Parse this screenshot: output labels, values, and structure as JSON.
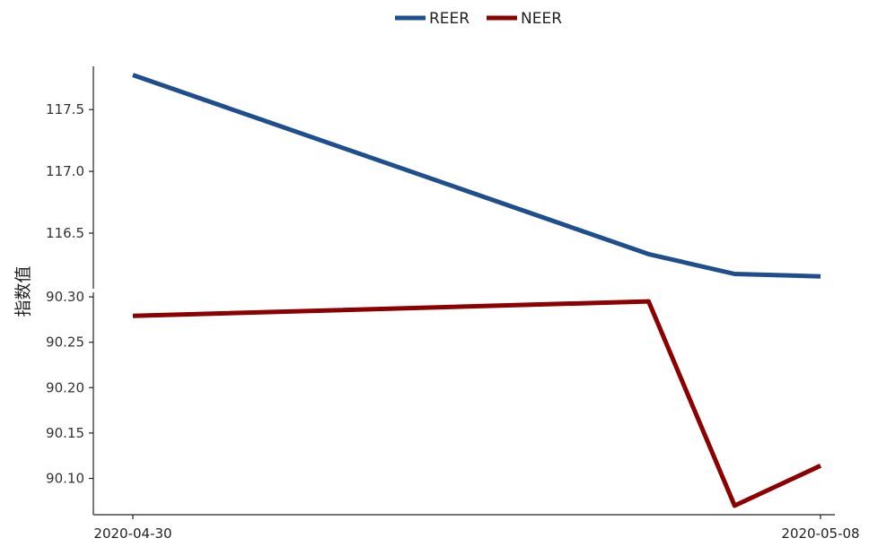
{
  "chart_data": {
    "type": "line",
    "title": "",
    "ylabel": "指数值",
    "xlabel": "",
    "x": [
      "2020-04-30",
      "2020-05-06",
      "2020-05-07",
      "2020-05-08"
    ],
    "xticks": [
      "2020-04-30",
      "2020-05-08"
    ],
    "legend": {
      "position": "top",
      "entries": [
        "REER",
        "NEER"
      ]
    },
    "panels": [
      {
        "series": "REER",
        "color": "#1f4e8c",
        "values": [
          117.78,
          116.33,
          116.17,
          116.15
        ],
        "ylim": [
          116.05,
          117.85
        ],
        "yticks": [
          "117.5",
          "117.0",
          "116.5"
        ]
      },
      {
        "series": "NEER",
        "color": "#8b0000",
        "values": [
          90.279,
          90.295,
          90.07,
          90.114
        ],
        "ylim": [
          90.06,
          90.305
        ],
        "yticks": [
          "90.30",
          "90.25",
          "90.20",
          "90.15",
          "90.10"
        ]
      }
    ],
    "grid": false
  }
}
